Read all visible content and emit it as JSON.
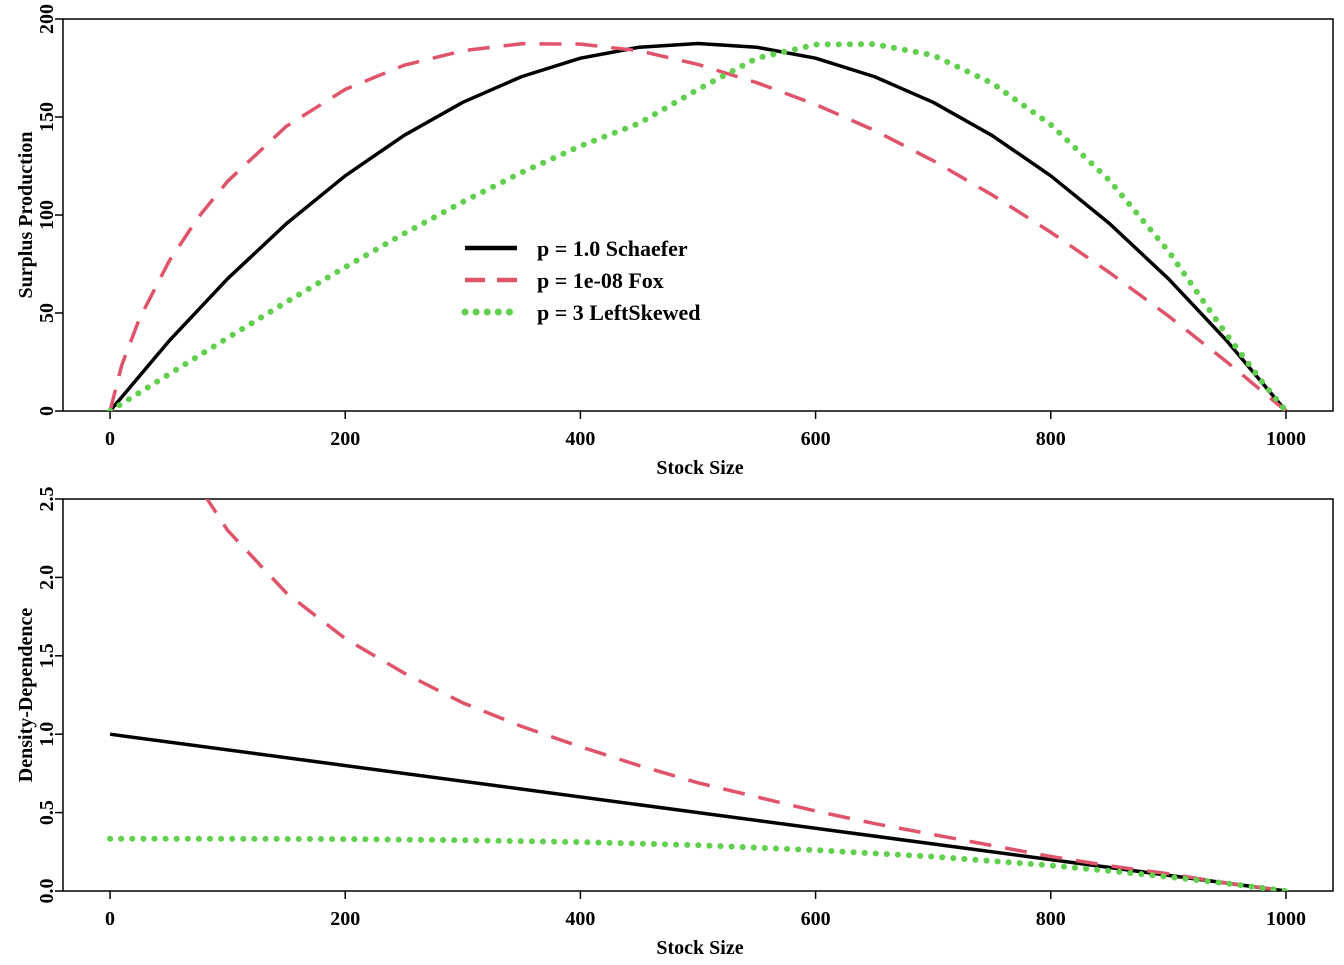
{
  "chart_data": [
    {
      "id": "top",
      "type": "line",
      "xlabel": "Stock Size",
      "ylabel": "Surplus Production",
      "xlim": [
        -40,
        1040
      ],
      "ylim": [
        0,
        200
      ],
      "xticks": [
        0,
        200,
        400,
        600,
        800,
        1000
      ],
      "yticks": [
        0,
        50,
        100,
        150,
        200
      ],
      "grid": false,
      "legend": {
        "position": "center-left",
        "entries": [
          {
            "label": "p = 1.0 Schaefer",
            "series": 0
          },
          {
            "label": "p = 1e-08 Fox",
            "series": 1
          },
          {
            "label": "p = 3 LeftSkewed",
            "series": 2
          }
        ]
      },
      "series": [
        {
          "name": "p = 1.0 Schaefer",
          "color": "#000000",
          "dash": "solid",
          "x": [
            0,
            50,
            100,
            150,
            200,
            250,
            300,
            350,
            400,
            450,
            500,
            550,
            600,
            650,
            700,
            750,
            800,
            850,
            900,
            950,
            1000
          ],
          "y": [
            0,
            35.6,
            67.5,
            95.6,
            120,
            140.6,
            157.5,
            170.6,
            180,
            185.6,
            187.5,
            185.6,
            180,
            170.6,
            157.5,
            140.6,
            120,
            95.6,
            67.5,
            35.6,
            0
          ]
        },
        {
          "name": "p = 1e-08 Fox",
          "color": "#DF536B",
          "dash": "dashed",
          "x": [
            0,
            10,
            25,
            50,
            75,
            100,
            150,
            200,
            250,
            300,
            350,
            400,
            450,
            500,
            550,
            600,
            650,
            700,
            750,
            800,
            850,
            900,
            950,
            1000
          ],
          "y": [
            0,
            23.5,
            47.1,
            76.2,
            98.8,
            117.2,
            145.3,
            164.1,
            176.4,
            183.8,
            187.4,
            187.2,
            183.8,
            176.8,
            167.5,
            156.4,
            143.2,
            127.7,
            110.3,
            91.2,
            70.6,
            48.5,
            24.9,
            0
          ]
        },
        {
          "name": "p = 3 LeftSkewed",
          "color": "#61D04F",
          "dash": "dotted",
          "x": [
            0,
            50,
            100,
            150,
            200,
            250,
            300,
            350,
            400,
            450,
            500,
            550,
            600,
            650,
            700,
            750,
            800,
            850,
            900,
            950,
            980,
            1000
          ],
          "y": [
            0,
            18.7,
            37.3,
            55.6,
            73.4,
            90.5,
            106.7,
            121.7,
            135.2,
            146.8,
            164.1,
            180,
            187,
            187.2,
            181.5,
            167.3,
            146.1,
            117.6,
            81.6,
            38.6,
            14.7,
            0
          ]
        }
      ]
    },
    {
      "id": "bottom",
      "type": "line",
      "xlabel": "Stock Size",
      "ylabel": "Density-Dependence",
      "xlim": [
        -40,
        1040
      ],
      "ylim": [
        0,
        2.5
      ],
      "xticks": [
        0,
        200,
        400,
        600,
        800,
        1000
      ],
      "yticks": [
        0.0,
        0.5,
        1.0,
        1.5,
        2.0,
        2.5
      ],
      "ytick_labels": [
        "0.0",
        "0.5",
        "1.0",
        "1.5",
        "2.0",
        "2.5"
      ],
      "grid": false,
      "series": [
        {
          "name": "p = 1.0 Schaefer",
          "color": "#000000",
          "dash": "solid",
          "x": [
            0,
            1000
          ],
          "y": [
            1.0,
            0.0
          ]
        },
        {
          "name": "p = 1e-08 Fox",
          "color": "#DF536B",
          "dash": "dashed",
          "x": [
            80,
            100,
            150,
            200,
            250,
            300,
            350,
            400,
            450,
            500,
            550,
            600,
            650,
            700,
            750,
            800,
            850,
            900,
            950,
            1000
          ],
          "y": [
            2.53,
            2.3,
            1.9,
            1.61,
            1.39,
            1.2,
            1.05,
            0.92,
            0.8,
            0.69,
            0.6,
            0.51,
            0.43,
            0.36,
            0.29,
            0.22,
            0.16,
            0.11,
            0.05,
            0.0
          ]
        },
        {
          "name": "p = 3 LeftSkewed",
          "color": "#61D04F",
          "dash": "dotted",
          "x": [
            0,
            100,
            200,
            300,
            400,
            500,
            600,
            700,
            800,
            850,
            900,
            950,
            1000
          ],
          "y": [
            0.333,
            0.333,
            0.331,
            0.324,
            0.312,
            0.292,
            0.261,
            0.219,
            0.163,
            0.128,
            0.09,
            0.048,
            0.0
          ]
        }
      ]
    }
  ]
}
